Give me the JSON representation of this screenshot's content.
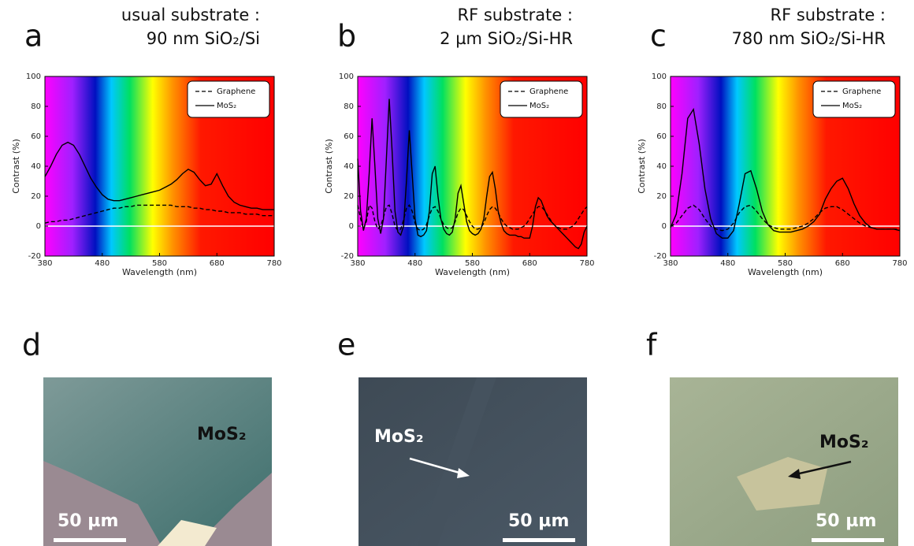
{
  "chart_data": [
    {
      "type": "line",
      "panel": "a",
      "title": [
        "usual substrate :",
        "90 nm SiO₂/Si"
      ],
      "xlabel": "Wavelength (nm)",
      "ylabel": "Contrast (%)",
      "xlim": [
        380,
        780
      ],
      "ylim": [
        -20,
        100
      ],
      "xticks": [
        380,
        480,
        580,
        680,
        780
      ],
      "yticks": [
        -20,
        0,
        20,
        40,
        60,
        80,
        100
      ],
      "legend": "upper right",
      "x": [
        380,
        390,
        400,
        410,
        420,
        430,
        440,
        450,
        460,
        470,
        480,
        490,
        500,
        510,
        520,
        530,
        540,
        550,
        560,
        570,
        580,
        590,
        600,
        610,
        620,
        630,
        640,
        650,
        660,
        670,
        680,
        690,
        700,
        710,
        720,
        730,
        740,
        750,
        760,
        770,
        780
      ],
      "series": [
        {
          "name": "Graphene",
          "color": "#000000",
          "dash": true,
          "values": [
            2,
            3,
            3,
            4,
            4,
            5,
            6,
            7,
            8,
            9,
            10,
            11,
            12,
            12,
            13,
            13,
            14,
            14,
            14,
            14,
            14,
            14,
            14,
            13,
            13,
            13,
            12,
            12,
            11,
            11,
            10,
            10,
            9,
            9,
            9,
            8,
            8,
            8,
            7,
            7,
            7
          ]
        },
        {
          "name": "MoS₂",
          "color": "#000000",
          "dash": false,
          "values": [
            33,
            40,
            48,
            54,
            56,
            54,
            48,
            40,
            32,
            26,
            21,
            18,
            17,
            17,
            18,
            19,
            20,
            21,
            22,
            23,
            24,
            26,
            28,
            31,
            35,
            38,
            36,
            31,
            27,
            28,
            35,
            27,
            20,
            16,
            14,
            13,
            12,
            12,
            11,
            11,
            11
          ]
        }
      ]
    },
    {
      "type": "line",
      "panel": "b",
      "title": [
        "RF substrate :",
        "2 µm SiO₂/Si-HR"
      ],
      "xlabel": "Wavelength (nm)",
      "ylabel": "Contrast (%)",
      "xlim": [
        380,
        780
      ],
      "ylim": [
        -20,
        100
      ],
      "xticks": [
        380,
        480,
        580,
        680,
        780
      ],
      "yticks": [
        -20,
        0,
        20,
        40,
        60,
        80,
        100
      ],
      "legend": "upper right",
      "x": [
        380,
        385,
        390,
        395,
        400,
        405,
        410,
        415,
        420,
        425,
        430,
        435,
        440,
        445,
        450,
        455,
        460,
        465,
        470,
        475,
        480,
        485,
        490,
        495,
        500,
        505,
        510,
        515,
        520,
        525,
        530,
        535,
        540,
        545,
        550,
        555,
        560,
        565,
        570,
        575,
        580,
        585,
        590,
        595,
        600,
        605,
        610,
        615,
        620,
        625,
        630,
        635,
        640,
        645,
        650,
        655,
        660,
        665,
        670,
        675,
        680,
        685,
        690,
        695,
        700,
        705,
        710,
        715,
        720,
        725,
        730,
        735,
        740,
        745,
        750,
        755,
        760,
        765,
        770,
        775,
        780
      ],
      "series": [
        {
          "name": "Graphene",
          "color": "#000000",
          "dash": true,
          "values": [
            14,
            5,
            -2,
            3,
            14,
            12,
            3,
            -2,
            0,
            6,
            13,
            14,
            8,
            0,
            -3,
            -2,
            4,
            12,
            14,
            10,
            2,
            -2,
            -3,
            -2,
            1,
            7,
            12,
            13,
            10,
            5,
            1,
            -1,
            -2,
            -1,
            3,
            9,
            12,
            11,
            7,
            3,
            0,
            -2,
            -2,
            -1,
            2,
            7,
            11,
            13,
            12,
            9,
            5,
            2,
            0,
            -1,
            -2,
            -2,
            -2,
            -1,
            0,
            2,
            5,
            8,
            11,
            13,
            13,
            11,
            8,
            5,
            2,
            0,
            -1,
            -2,
            -2,
            -2,
            -1,
            0,
            2,
            5,
            8,
            11,
            13
          ]
        },
        {
          "name": "MoS₂",
          "color": "#000000",
          "dash": false,
          "values": [
            45,
            10,
            -3,
            5,
            35,
            72,
            40,
            5,
            -5,
            5,
            45,
            85,
            50,
            10,
            -4,
            -6,
            0,
            30,
            64,
            35,
            5,
            -6,
            -7,
            -6,
            -3,
            10,
            35,
            40,
            20,
            5,
            -2,
            -5,
            -6,
            -4,
            5,
            22,
            27,
            15,
            3,
            -3,
            -5,
            -6,
            -5,
            -2,
            5,
            20,
            33,
            36,
            25,
            10,
            2,
            -3,
            -5,
            -6,
            -6,
            -6,
            -7,
            -7,
            -8,
            -8,
            -8,
            0,
            13,
            19,
            17,
            12,
            7,
            4,
            2,
            0,
            -2,
            -4,
            -6,
            -8,
            -10,
            -12,
            -14,
            -15,
            -12,
            -4,
            0
          ]
        }
      ]
    },
    {
      "type": "line",
      "panel": "c",
      "title": [
        "RF substrate :",
        "780 nm SiO₂/Si-HR"
      ],
      "xlabel": "Wavelength (nm)",
      "ylabel": "Contrast (%)",
      "xlim": [
        380,
        780
      ],
      "ylim": [
        -20,
        100
      ],
      "xticks": [
        380,
        480,
        580,
        680,
        780
      ],
      "yticks": [
        -20,
        0,
        20,
        40,
        60,
        80,
        100
      ],
      "legend": "upper right",
      "x": [
        380,
        390,
        400,
        410,
        420,
        430,
        440,
        450,
        460,
        470,
        480,
        490,
        500,
        510,
        520,
        530,
        540,
        550,
        560,
        570,
        580,
        590,
        600,
        610,
        620,
        630,
        640,
        650,
        660,
        670,
        680,
        690,
        700,
        710,
        720,
        730,
        740,
        750,
        760,
        770,
        780
      ],
      "series": [
        {
          "name": "Graphene",
          "color": "#000000",
          "dash": true,
          "values": [
            0,
            2,
            7,
            12,
            14,
            11,
            5,
            0,
            -2,
            -3,
            -2,
            2,
            9,
            13,
            14,
            10,
            5,
            1,
            -1,
            -2,
            -2,
            -2,
            -1,
            0,
            2,
            5,
            9,
            12,
            13,
            13,
            11,
            8,
            5,
            2,
            0,
            -1,
            -2,
            -2,
            -2,
            -2,
            -2
          ]
        },
        {
          "name": "MoS₂",
          "color": "#000000",
          "dash": false,
          "values": [
            -1,
            8,
            35,
            72,
            78,
            55,
            25,
            5,
            -5,
            -8,
            -8,
            -3,
            15,
            35,
            37,
            25,
            10,
            1,
            -3,
            -4,
            -4,
            -4,
            -3,
            -2,
            0,
            3,
            8,
            18,
            25,
            30,
            32,
            25,
            15,
            7,
            2,
            -1,
            -2,
            -2,
            -2,
            -2,
            -3
          ]
        }
      ]
    }
  ],
  "photos": [
    {
      "panel": "d",
      "label": "MoS₂",
      "scale": "50 µm"
    },
    {
      "panel": "e",
      "label": "MoS₂",
      "scale": "50 µm"
    },
    {
      "panel": "f",
      "label": "MoS₂",
      "scale": "50 µm"
    }
  ]
}
